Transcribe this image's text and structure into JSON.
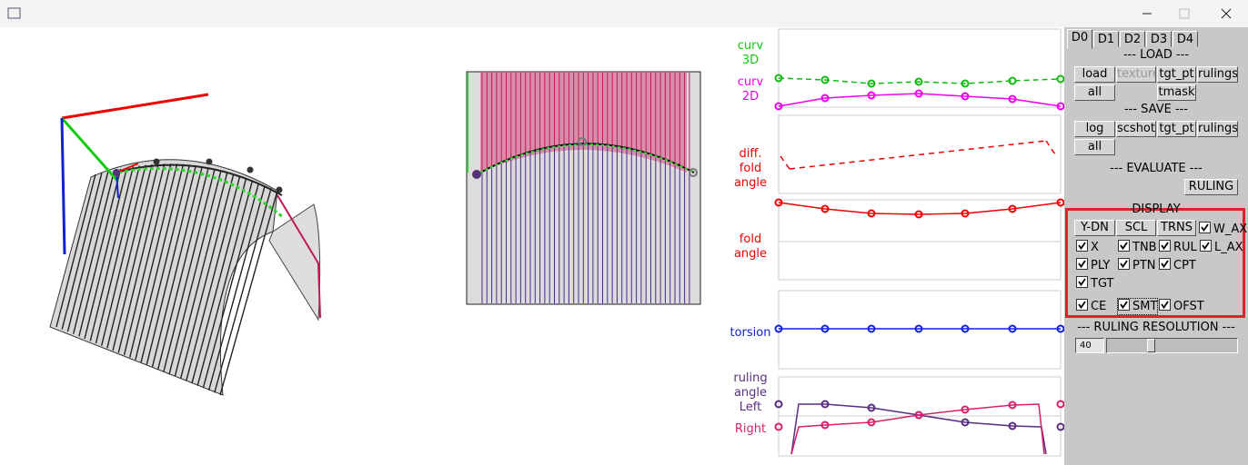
{
  "graph_labels": [
    {
      "lines": [
        "curv",
        "3D"
      ]
    },
    {
      "lines": [
        "curv",
        "2D"
      ]
    },
    {
      "lines": [
        "diff.",
        "fold",
        "angle"
      ]
    },
    {
      "lines": [
        "fold",
        "angle"
      ]
    },
    {
      "lines": [
        "torsion"
      ]
    },
    {
      "lines": [
        "ruling",
        "angle",
        "Left"
      ]
    },
    {
      "lines": [
        "Right"
      ]
    }
  ],
  "tabs": [
    "D0",
    "D1",
    "D2",
    "D3",
    "D4"
  ],
  "load": {
    "title": "--- LOAD ---",
    "buttons": [
      {
        "label": "load",
        "enabled": true
      },
      {
        "label": "texture",
        "enabled": false
      },
      {
        "label": "tgt_pt",
        "enabled": true
      },
      {
        "label": "rulings",
        "enabled": true
      },
      {
        "label": "all",
        "enabled": true
      },
      {
        "label": "tmask",
        "enabled": true
      }
    ]
  },
  "save": {
    "title": "--- SAVE ---",
    "buttons": [
      {
        "label": "log",
        "enabled": true
      },
      {
        "label": "scshot",
        "enabled": true
      },
      {
        "label": "tgt_pt",
        "enabled": true
      },
      {
        "label": "rulings",
        "enabled": true
      },
      {
        "label": "all",
        "enabled": true
      }
    ]
  },
  "evaluate": {
    "title": "--- EVALUATE ---",
    "buttons": [
      {
        "label": "RULING",
        "enabled": true
      }
    ]
  },
  "display": {
    "title": "DISPLAY",
    "buttons": [
      {
        "label": "Y-DN",
        "enabled": true
      },
      {
        "label": "SCL",
        "enabled": true
      },
      {
        "label": "TRNS",
        "enabled": true
      }
    ],
    "checkboxes": [
      {
        "label": "W_AX",
        "checked": true
      },
      {
        "label": "X",
        "checked": true
      },
      {
        "label": "TNB",
        "checked": true
      },
      {
        "label": "RUL",
        "checked": true
      },
      {
        "label": "L_AX",
        "checked": true
      },
      {
        "label": "PLY",
        "checked": true
      },
      {
        "label": "PTN",
        "checked": true
      },
      {
        "label": "CPT",
        "checked": true
      },
      {
        "label": "TGT",
        "checked": true
      },
      {
        "label": "CE",
        "checked": true
      },
      {
        "label": "SMT",
        "checked": true
      },
      {
        "label": "OFST",
        "checked": true
      }
    ]
  },
  "ruling_resolution": {
    "title": "--- RULING RESOLUTION ---",
    "value": 40
  }
}
